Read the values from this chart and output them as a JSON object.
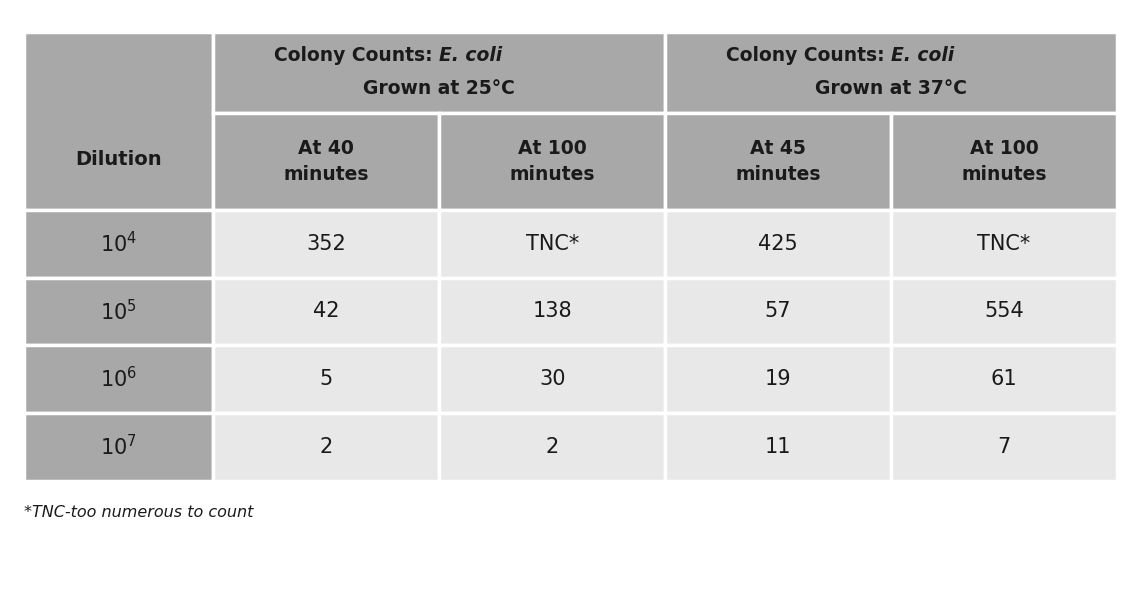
{
  "footnote": "*TNC-too numerous to count",
  "rows": [
    [
      "10^4",
      "352",
      "TNC*",
      "425",
      "TNC*"
    ],
    [
      "10^5",
      "42",
      "138",
      "57",
      "554"
    ],
    [
      "10^6",
      "5",
      "30",
      "19",
      "61"
    ],
    [
      "10^7",
      "2",
      "2",
      "11",
      "7"
    ]
  ],
  "header_bg": "#a8a8a8",
  "data_row_bg": "#e8e8e8",
  "border_color": "#ffffff",
  "text_color": "#1a1a1a",
  "background_color": "#ffffff",
  "fig_width": 11.41,
  "fig_height": 6.07
}
